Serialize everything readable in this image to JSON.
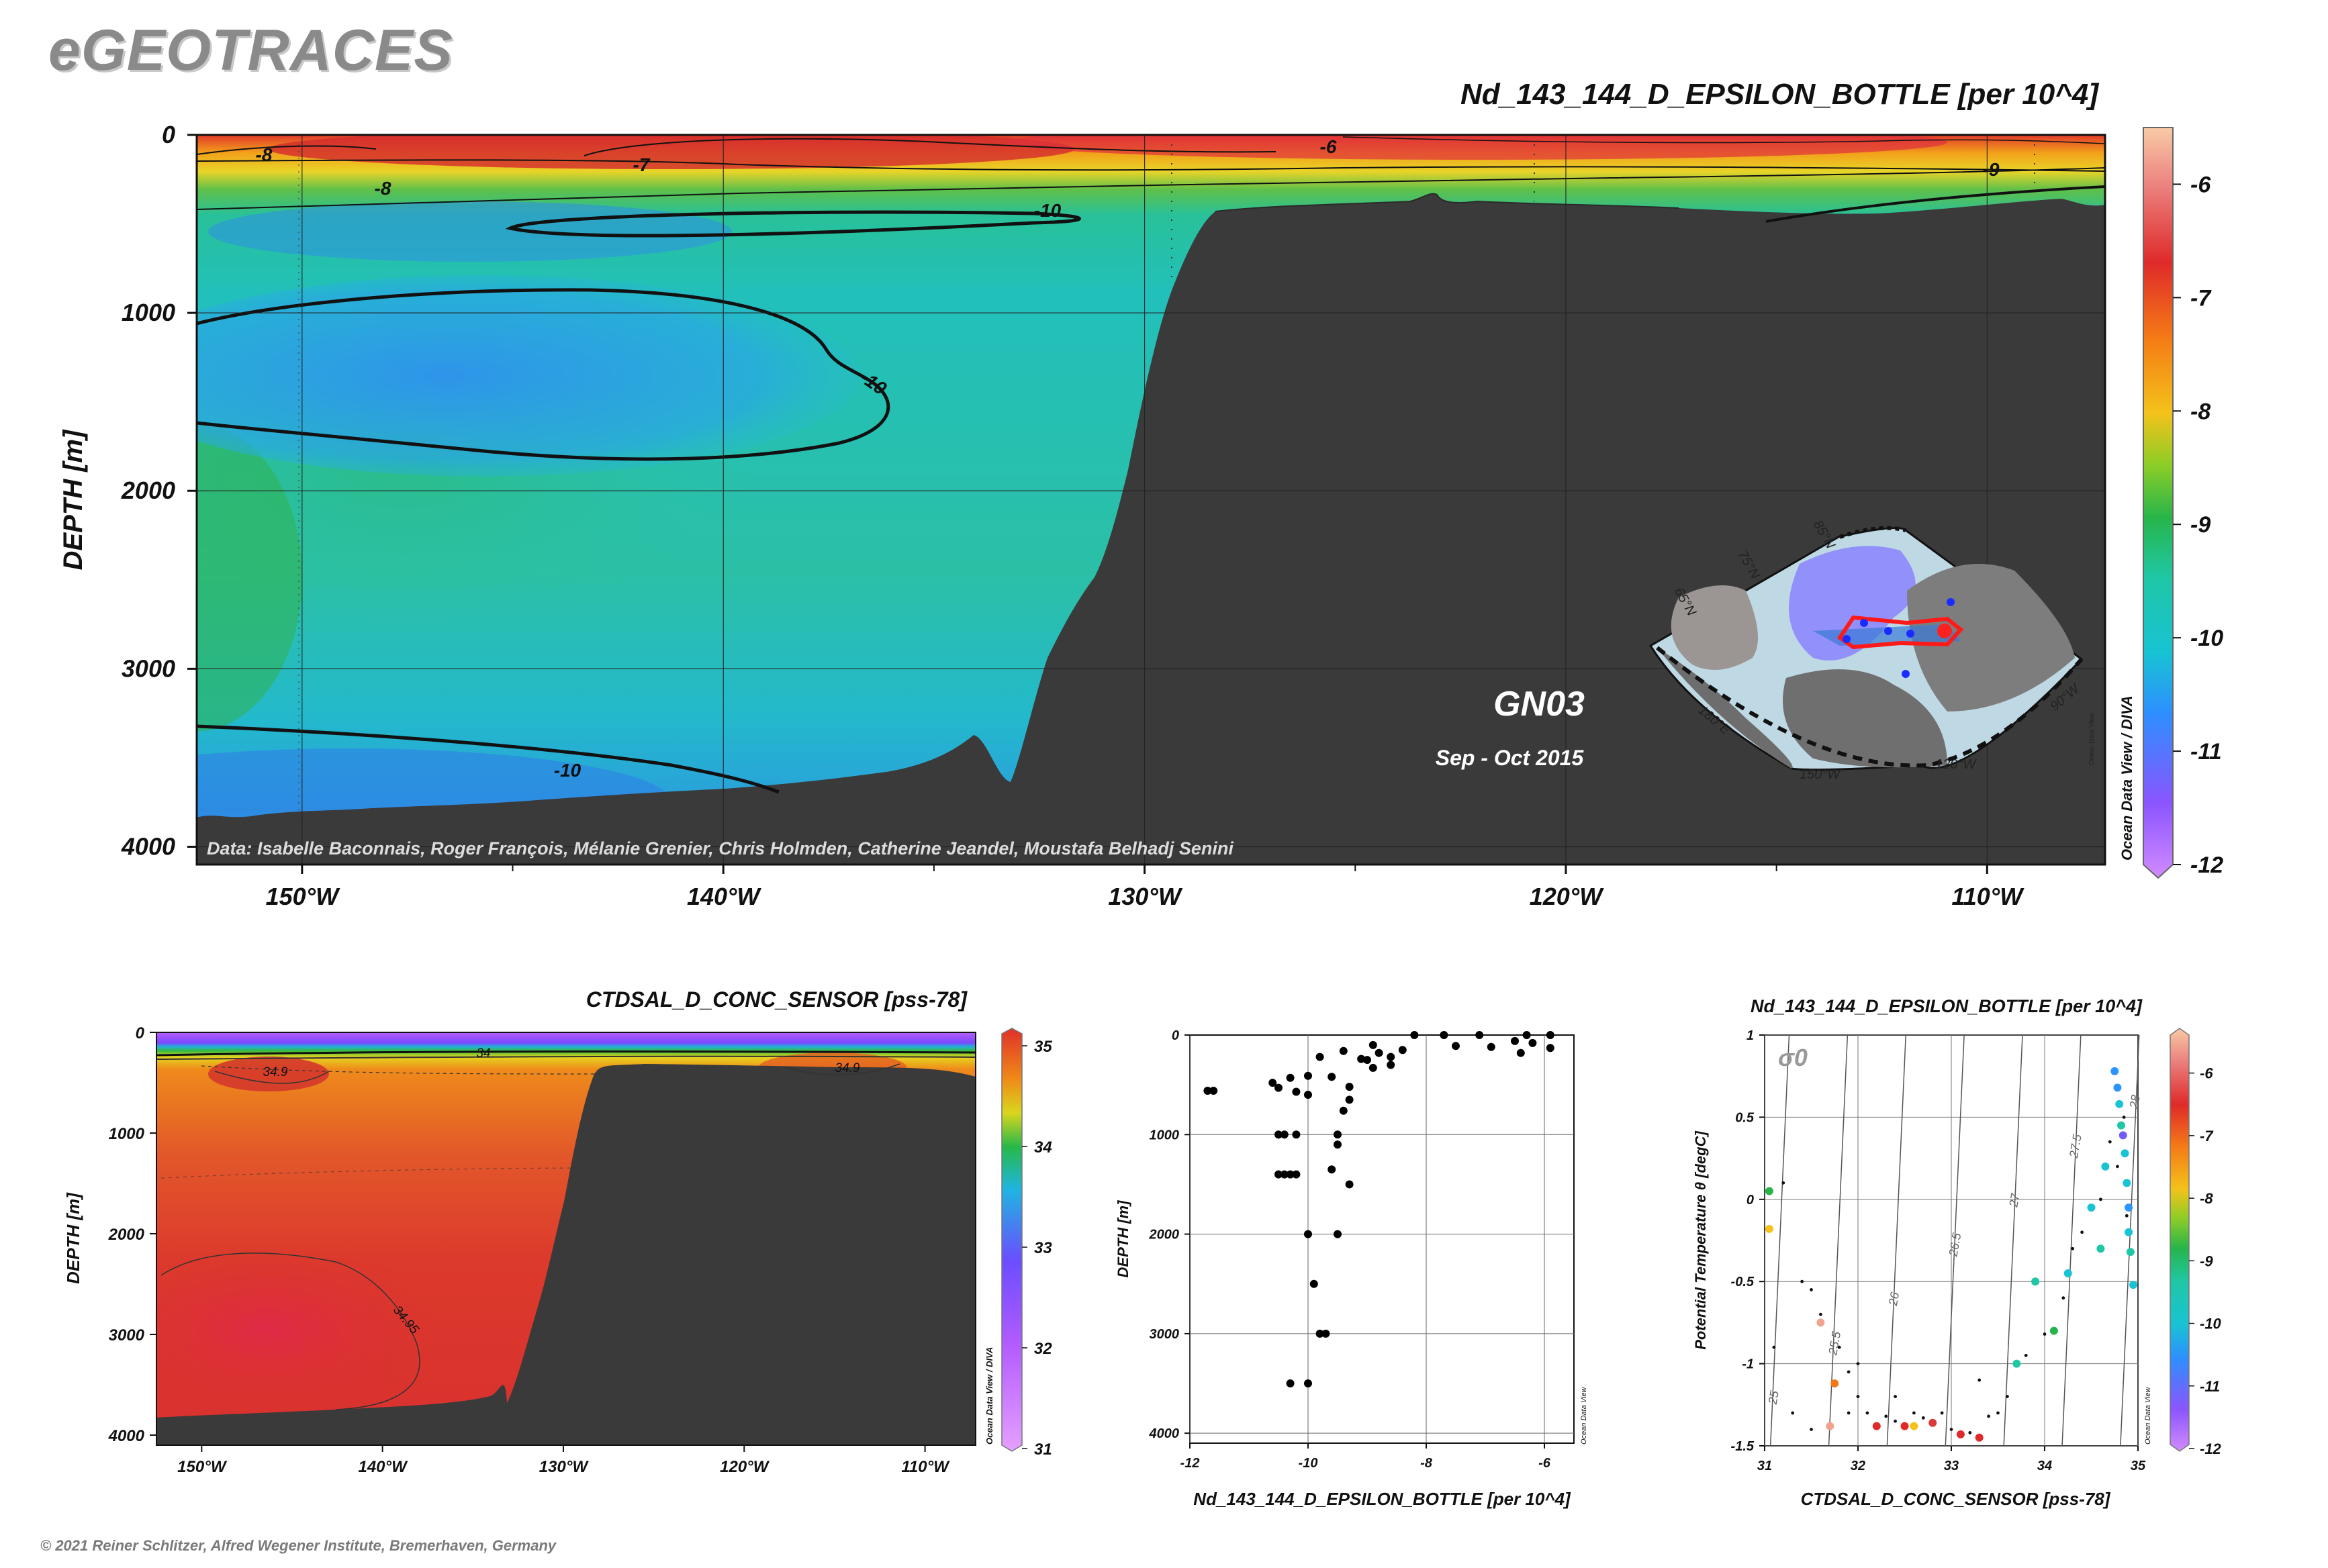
{
  "brand": "eGEOTRACES",
  "copyright": "© 2021 Reiner Schlitzer, Alfred Wegener Institute, Bremerhaven, Germany",
  "colors": {
    "seafloor": "#3a3a3a",
    "epsilon_scale": [
      "#b44dff",
      "#6f5cff",
      "#2d95ff",
      "#18c3d3",
      "#1fc7a6",
      "#27b54a",
      "#8ccd27",
      "#f4c21a",
      "#f57a16",
      "#df2a2a",
      "#d93a3a",
      "#f0a38e",
      "#f6c9a3"
    ],
    "salinity_scale": [
      "#cf6fff",
      "#8b4dff",
      "#3a77ff",
      "#1cc2d7",
      "#27b848",
      "#d6d620",
      "#f08a18",
      "#e0302a"
    ]
  },
  "chart_data": [
    {
      "id": "main_section",
      "type": "heatmap",
      "title": "Nd_143_144_D_EPSILON_BOTTLE [per 10^4]",
      "ylabel": "DEPTH [m]",
      "xlabel": "",
      "xlim": [
        -152.5,
        -107.2
      ],
      "ylim": [
        4100,
        0
      ],
      "x_ticks": [
        {
          "value": -150,
          "label": "150°W"
        },
        {
          "value": -140,
          "label": "140°W"
        },
        {
          "value": -130,
          "label": "130°W"
        },
        {
          "value": -120,
          "label": "120°W"
        },
        {
          "value": -110,
          "label": "110°W"
        }
      ],
      "y_ticks": [
        {
          "value": 0,
          "label": "0"
        },
        {
          "value": 1000,
          "label": "1000"
        },
        {
          "value": 2000,
          "label": "2000"
        },
        {
          "value": 3000,
          "label": "3000"
        },
        {
          "value": 4000,
          "label": "4000"
        }
      ],
      "colorbar": {
        "min": -12,
        "max": -5.5,
        "ticks": [
          "-6",
          "-7",
          "-8",
          "-9",
          "-10",
          "-11",
          "-12"
        ],
        "tick_values": [
          -6,
          -7,
          -8,
          -9,
          -10,
          -11,
          -12
        ]
      },
      "contour_labels": [
        "-8",
        "-7",
        "-6",
        "-8",
        "-10",
        "-10",
        "-10",
        "-9"
      ],
      "section_name": "GN03",
      "date_range": "Sep - Oct 2015",
      "data_credit": "Data: Isabelle Baconnais, Roger François, Mélanie Grenier, Chris Holmden, Catherine Jeandel, Moustafa Belhadj Senini",
      "odv_credit": "Ocean Data View / DIVA",
      "inset_map": {
        "lat_labels": [
          "85°N",
          "75°N",
          "65°N"
        ],
        "lon_labels": [
          "180°E",
          "150°W",
          "120°W",
          "90°W"
        ],
        "odv_credit": "Ocean Data View"
      }
    },
    {
      "id": "salinity_section",
      "type": "heatmap",
      "title": "CTDSAL_D_CONC_SENSOR [pss-78]",
      "ylabel": "DEPTH [m]",
      "xlim": [
        -152.5,
        -107.2
      ],
      "ylim": [
        4100,
        0
      ],
      "x_tick_labels": [
        "150°W",
        "140°W",
        "130°W",
        "120°W",
        "110°W"
      ],
      "x_tick_values": [
        -150,
        -140,
        -130,
        -120,
        -110
      ],
      "y_tick_labels": [
        "0",
        "1000",
        "2000",
        "3000",
        "4000"
      ],
      "colorbar": {
        "min": 31,
        "max": 35,
        "ticks": [
          "35",
          "34",
          "33",
          "32",
          "31"
        ],
        "tick_values": [
          35,
          34,
          33,
          32,
          31
        ]
      },
      "contour_labels": [
        "34",
        "34.9",
        "34.9",
        "34.95"
      ],
      "odv_credit": "Ocean Data View / DIVA"
    },
    {
      "id": "profile_scatter",
      "type": "scatter",
      "xlabel": "Nd_143_144_D_EPSILON_BOTTLE [per 10^4]",
      "ylabel": "DEPTH [m]",
      "xlim": [
        -12,
        -5.5
      ],
      "ylim": [
        4100,
        0
      ],
      "x_tick_labels": [
        "-12",
        "-10",
        "-8",
        "-6"
      ],
      "x_tick_values": [
        -12,
        -10,
        -8,
        -6
      ],
      "y_tick_labels": [
        "0",
        "1000",
        "2000",
        "3000",
        "4000"
      ],
      "odv_credit": "Ocean Data View",
      "points": [
        [
          -11.7,
          560
        ],
        [
          -11.6,
          560
        ],
        [
          -10.6,
          480
        ],
        [
          -10.3,
          430
        ],
        [
          -10.0,
          410
        ],
        [
          -9.3,
          520
        ],
        [
          -8.9,
          330
        ],
        [
          -8.6,
          300
        ],
        [
          -8.2,
          0
        ],
        [
          -8.4,
          150
        ],
        [
          -9.4,
          160
        ],
        [
          -9.1,
          240
        ],
        [
          -8.8,
          180
        ],
        [
          -9.8,
          220
        ],
        [
          -9.6,
          420
        ],
        [
          -10.5,
          530
        ],
        [
          -10.2,
          570
        ],
        [
          -9.3,
          650
        ],
        [
          -9.4,
          760
        ],
        [
          -10.0,
          600
        ],
        [
          -7.1,
          0
        ],
        [
          -6.3,
          0
        ],
        [
          -5.9,
          0
        ],
        [
          -6.2,
          80
        ],
        [
          -6.9,
          120
        ],
        [
          -7.5,
          110
        ],
        [
          -7.7,
          0
        ],
        [
          -8.6,
          220
        ],
        [
          -9.0,
          250
        ],
        [
          -10.5,
          1000
        ],
        [
          -10.4,
          1000
        ],
        [
          -10.2,
          1000
        ],
        [
          -10.4,
          1400
        ],
        [
          -10.5,
          1400
        ],
        [
          -10.3,
          1400
        ],
        [
          -10.2,
          1400
        ],
        [
          -9.6,
          1350
        ],
        [
          -9.5,
          1000
        ],
        [
          -9.5,
          1100
        ],
        [
          -10.0,
          2000
        ],
        [
          -9.5,
          2000
        ],
        [
          -9.9,
          2500
        ],
        [
          -9.8,
          3000
        ],
        [
          -9.7,
          3000
        ],
        [
          -10.3,
          3500
        ],
        [
          -10.0,
          3500
        ],
        [
          -9.3,
          1500
        ],
        [
          -6.4,
          180
        ],
        [
          -5.9,
          130
        ],
        [
          -6.5,
          60
        ],
        [
          -8.9,
          100
        ]
      ]
    },
    {
      "id": "ts_diagram",
      "type": "scatter",
      "title": "Nd_143_144_D_EPSILON_BOTTLE [per 10^4]",
      "xlabel": "CTDSAL_D_CONC_SENSOR [pss-78]",
      "ylabel": "Potential Temperature θ [degC]",
      "xlim": [
        31,
        35
      ],
      "ylim": [
        -1.5,
        1
      ],
      "x_tick_labels": [
        "31",
        "32",
        "33",
        "34",
        "35"
      ],
      "x_tick_values": [
        31,
        32,
        33,
        34,
        35
      ],
      "y_tick_labels": [
        "1",
        "0.5",
        "0",
        "-0.5",
        "-1",
        "-1.5"
      ],
      "y_tick_values": [
        1,
        0.5,
        0,
        -0.5,
        -1,
        -1.5
      ],
      "isopycnal_symbol": "σ0",
      "isopycnal_labels": [
        "25",
        "25.5",
        "26",
        "26.5",
        "27",
        "27.5",
        "28"
      ],
      "colorbar": {
        "min": -12,
        "max": -5.5,
        "ticks": [
          "-6",
          "-7",
          "-8",
          "-9",
          "-10",
          "-11",
          "-12"
        ],
        "tick_values": [
          -6,
          -7,
          -8,
          -9,
          -10,
          -11,
          -12
        ]
      },
      "odv_credit": "Ocean Data View",
      "colored_points": [
        [
          31.05,
          0.05,
          -9.2
        ],
        [
          31.05,
          -0.18,
          -7.8
        ],
        [
          31.6,
          -0.75,
          -6.1
        ],
        [
          31.75,
          -1.12,
          -7.6
        ],
        [
          31.7,
          -1.38,
          -6.1
        ],
        [
          32.2,
          -1.38,
          -6.8
        ],
        [
          32.5,
          -1.38,
          -6.9
        ],
        [
          32.6,
          -1.38,
          -7.8
        ],
        [
          32.8,
          -1.36,
          -6.5
        ],
        [
          33.1,
          -1.43,
          -6.9
        ],
        [
          33.3,
          -1.45,
          -6.8
        ],
        [
          33.7,
          -1.0,
          -9.4
        ],
        [
          33.9,
          -0.5,
          -9.6
        ],
        [
          34.1,
          -0.8,
          -8.8
        ],
        [
          34.25,
          -0.45,
          -9.9
        ],
        [
          34.5,
          -0.05,
          -10.2
        ],
        [
          34.6,
          -0.3,
          -9.6
        ],
        [
          34.65,
          0.2,
          -10.1
        ],
        [
          34.75,
          0.78,
          -10.7
        ],
        [
          34.78,
          0.68,
          -10.3
        ],
        [
          34.8,
          0.58,
          -10.0
        ],
        [
          34.82,
          0.45,
          -9.6
        ],
        [
          34.84,
          0.39,
          -11.2
        ],
        [
          34.86,
          0.28,
          -10.0
        ],
        [
          34.88,
          0.1,
          -9.8
        ],
        [
          34.9,
          -0.05,
          -10.4
        ],
        [
          34.9,
          -0.2,
          -9.9
        ],
        [
          34.92,
          -0.32,
          -9.4
        ],
        [
          34.95,
          -0.52,
          -10.1
        ]
      ],
      "background_points": [
        [
          31.2,
          0.1
        ],
        [
          31.4,
          -0.5
        ],
        [
          31.5,
          -0.55
        ],
        [
          31.6,
          -0.7
        ],
        [
          31.8,
          -0.9
        ],
        [
          31.9,
          -1.05
        ],
        [
          32.0,
          -1.2
        ],
        [
          32.1,
          -1.3
        ],
        [
          32.3,
          -1.32
        ],
        [
          32.4,
          -1.35
        ],
        [
          32.6,
          -1.3
        ],
        [
          32.7,
          -1.33
        ],
        [
          32.9,
          -1.3
        ],
        [
          33.0,
          -1.4
        ],
        [
          33.2,
          -1.42
        ],
        [
          33.4,
          -1.32
        ],
        [
          33.5,
          -1.3
        ],
        [
          33.6,
          -1.2
        ],
        [
          33.8,
          -0.95
        ],
        [
          34.0,
          -0.82
        ],
        [
          34.2,
          -0.6
        ],
        [
          34.3,
          -0.3
        ],
        [
          34.4,
          -0.2
        ],
        [
          34.6,
          0.0
        ],
        [
          34.7,
          0.35
        ],
        [
          34.78,
          0.2
        ],
        [
          34.85,
          0.5
        ],
        [
          34.88,
          -0.1
        ],
        [
          31.1,
          -0.9
        ],
        [
          31.3,
          -1.3
        ],
        [
          31.5,
          -1.4
        ],
        [
          31.9,
          -1.3
        ],
        [
          32.0,
          -1.0
        ],
        [
          32.4,
          -1.2
        ],
        [
          33.3,
          -1.1
        ]
      ]
    }
  ]
}
